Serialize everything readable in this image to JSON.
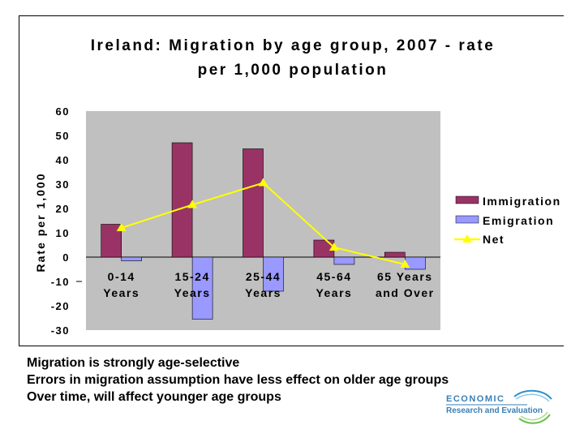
{
  "chart_data": {
    "type": "bar",
    "title_lines": [
      "Ireland: Migration by age group, 2007 - rate",
      "per 1,000 population"
    ],
    "ylabel": "Rate per 1,000",
    "ylim": [
      -30,
      60
    ],
    "yticks": [
      60,
      50,
      40,
      30,
      20,
      10,
      0,
      -10,
      -20,
      -30
    ],
    "categories": [
      {
        "line1": "0-14",
        "line2": "Years"
      },
      {
        "line1": "15-24",
        "line2": "Years"
      },
      {
        "line1": "25-44",
        "line2": "Years"
      },
      {
        "line1": "45-64",
        "line2": "Years"
      },
      {
        "line1": "65 Years",
        "line2": "and Over"
      }
    ],
    "series": [
      {
        "name": "Immigration",
        "type": "bar",
        "color": "#993366",
        "values": [
          13.5,
          47,
          44.5,
          7,
          2
        ]
      },
      {
        "name": "Emigration",
        "type": "bar",
        "color": "#9999ff",
        "values": [
          -1.5,
          -25.5,
          -14,
          -3,
          -5
        ]
      },
      {
        "name": "Net",
        "type": "line",
        "color": "#ffff00",
        "values": [
          12,
          21.5,
          30.5,
          4,
          -3
        ]
      }
    ],
    "plot_background": "#c0c0c0",
    "grid": false,
    "legend_position": "right"
  },
  "notes": [
    "Migration is strongly age-selective",
    "Errors in migration assumption have less effect on older age groups",
    "Over time, will affect younger age groups"
  ],
  "logo": {
    "top": "ECONOMIC",
    "bottom": "Research and Evaluation"
  }
}
